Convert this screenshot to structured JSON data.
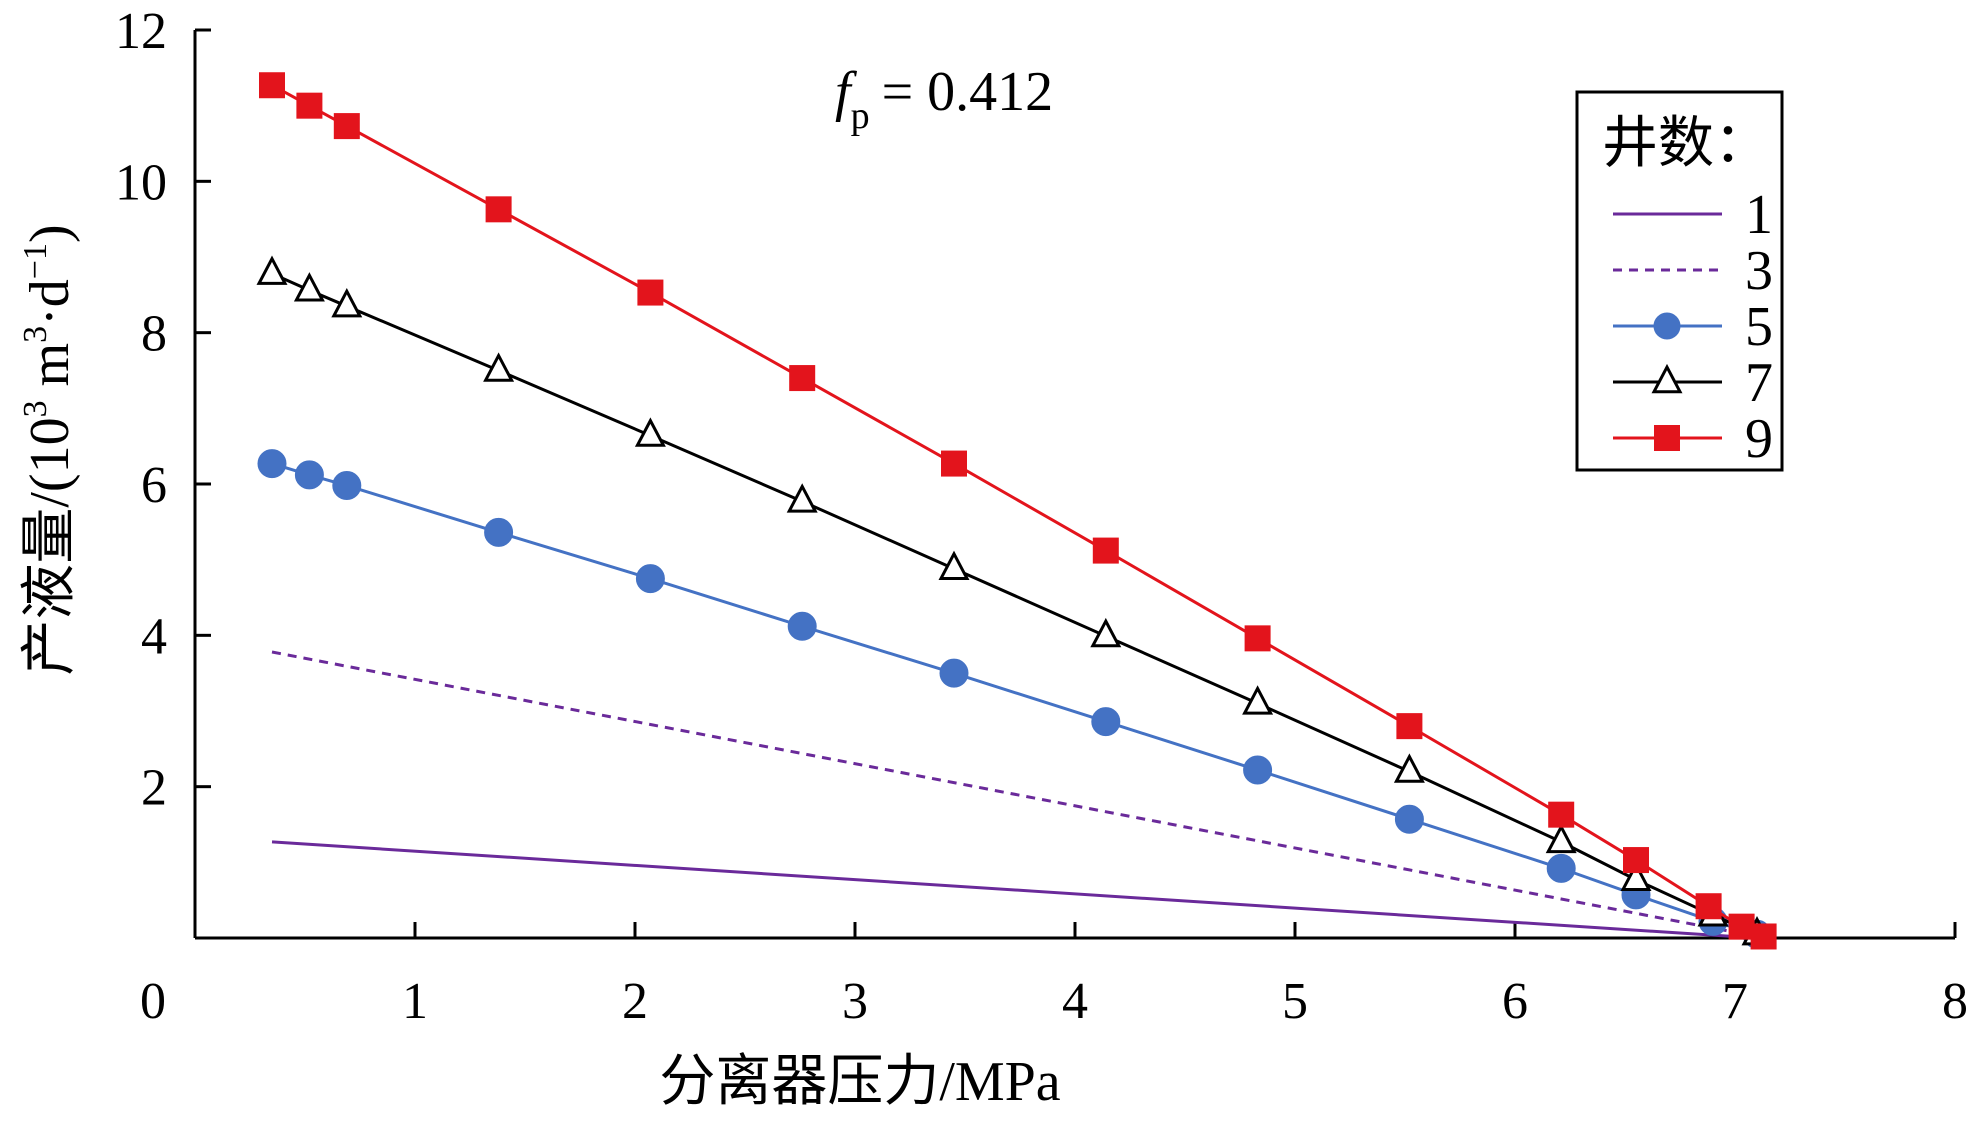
{
  "chart_data": {
    "type": "line",
    "title": "",
    "annotation": {
      "symbol": "f",
      "subscript": "p",
      "text": "= 0.412"
    },
    "xlabel": "分离器压力/MPa",
    "ylabel": {
      "main": "产液量/(10",
      "sup1": "3",
      "mid": " m",
      "sup2": "3",
      "tail": "·d",
      "sup3": "−1",
      "close": ")"
    },
    "xlim": [
      0,
      8
    ],
    "ylim": [
      0,
      12
    ],
    "xticks": [
      "0",
      "1",
      "2",
      "3",
      "4",
      "5",
      "6",
      "7",
      "8"
    ],
    "yticks": [
      "2",
      "4",
      "6",
      "8",
      "10",
      "12"
    ],
    "legend": {
      "title": "井数：",
      "position": "top-right"
    },
    "series": [
      {
        "name": "1",
        "color": "#6a2a9a",
        "dash": "solid",
        "marker": "none",
        "x": [
          0.35,
          7.1
        ],
        "y": [
          1.27,
          0.0
        ]
      },
      {
        "name": "3",
        "color": "#6a2a9a",
        "dash": "dashed",
        "marker": "none",
        "x": [
          0.35,
          7.1
        ],
        "y": [
          3.78,
          0.02
        ]
      },
      {
        "name": "5",
        "color": "#4472c4",
        "dash": "solid",
        "marker": "circle",
        "x": [
          0.35,
          0.52,
          0.69,
          1.38,
          2.07,
          2.76,
          3.45,
          4.14,
          4.83,
          5.52,
          6.21,
          6.55,
          6.9,
          7.1
        ],
        "y": [
          6.27,
          6.12,
          5.98,
          5.36,
          4.75,
          4.12,
          3.5,
          2.86,
          2.22,
          1.57,
          0.92,
          0.57,
          0.22,
          0.05
        ]
      },
      {
        "name": "7",
        "color": "#000000",
        "dash": "solid",
        "marker": "triangle",
        "x": [
          0.35,
          0.52,
          0.69,
          1.38,
          2.07,
          2.76,
          3.45,
          4.14,
          4.83,
          5.52,
          6.21,
          6.55,
          6.9,
          7.1
        ],
        "y": [
          8.78,
          8.56,
          8.35,
          7.5,
          6.64,
          5.77,
          4.88,
          3.99,
          3.1,
          2.2,
          1.27,
          0.77,
          0.3,
          0.05
        ]
      },
      {
        "name": "9",
        "color": "#e3141c",
        "dash": "solid",
        "marker": "square",
        "x": [
          0.35,
          0.52,
          0.69,
          1.38,
          2.07,
          2.76,
          3.45,
          4.14,
          4.83,
          5.52,
          6.21,
          6.55,
          6.88,
          7.03,
          7.13
        ],
        "y": [
          11.27,
          11.0,
          10.73,
          9.63,
          8.53,
          7.4,
          6.27,
          5.12,
          3.96,
          2.8,
          1.63,
          1.03,
          0.42,
          0.15,
          0.02
        ]
      }
    ]
  }
}
